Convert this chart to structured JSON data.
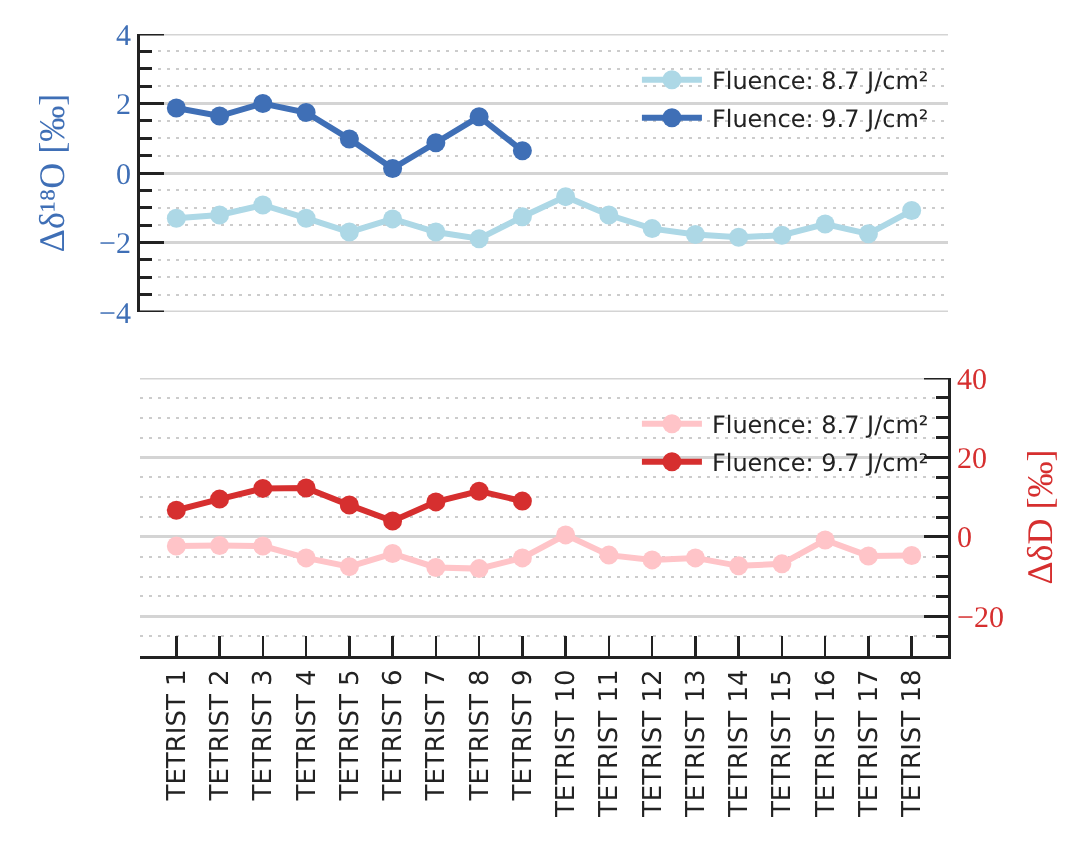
{
  "chart_data": [
    {
      "type": "line",
      "categories": [
        "TETRIST 1",
        "TETRIST 2",
        "TETRIST 3",
        "TETRIST 4",
        "TETRIST 5",
        "TETRIST 6",
        "TETRIST 7",
        "TETRIST 8",
        "TETRIST 9",
        "TETRIST 10",
        "TETRIST 11",
        "TETRIST 12",
        "TETRIST 13",
        "TETRIST 14",
        "TETRIST 15",
        "TETRIST 16",
        "TETRIST 17",
        "TETRIST 18"
      ],
      "ylabel": "Δδ¹⁸O [‰]",
      "ylim": [
        -4,
        4
      ],
      "yticks": [
        -4,
        {
          "value": -3.5,
          "label": null
        },
        {
          "value": -3,
          "label": null
        },
        {
          "value": -2.5,
          "label": null
        },
        -2,
        {
          "value": -1.5,
          "label": null
        },
        {
          "value": -1,
          "label": null
        },
        {
          "value": -0.5,
          "label": null
        },
        0,
        {
          "value": 0.5,
          "label": null
        },
        {
          "value": 1,
          "label": null
        },
        {
          "value": 1.5,
          "label": null
        },
        2,
        {
          "value": 2.5,
          "label": null
        },
        {
          "value": 3,
          "label": null
        },
        {
          "value": 3.5,
          "label": null
        },
        4
      ],
      "grid": "y",
      "legend": "top right",
      "marker": "circle",
      "tick_labels": "y",
      "series": [
        {
          "name": "Fluence: 8.7 J/cm²",
          "color": "#add8e6",
          "values": [
            -1.3,
            -1.21,
            -0.92,
            -1.3,
            -1.7,
            -1.32,
            -1.7,
            -1.89,
            -1.26,
            -0.68,
            -1.21,
            -1.6,
            -1.77,
            -1.85,
            -1.79,
            -1.47,
            -1.75,
            -1.08
          ]
        },
        {
          "name": "Fluence: 9.7 J/cm²",
          "color": "#3f6fb6",
          "values": [
            1.87,
            1.64,
            2.0,
            1.74,
            0.98,
            0.13,
            0.87,
            1.62,
            0.64,
            null,
            null,
            null,
            null,
            null,
            null,
            null,
            null,
            null
          ]
        }
      ]
    },
    {
      "type": "line",
      "categories": [
        "TETRIST 1",
        "TETRIST 2",
        "TETRIST 3",
        "TETRIST 4",
        "TETRIST 5",
        "TETRIST 6",
        "TETRIST 7",
        "TETRIST 8",
        "TETRIST 9",
        "TETRIST 10",
        "TETRIST 11",
        "TETRIST 12",
        "TETRIST 13",
        "TETRIST 14",
        "TETRIST 15",
        "TETRIST 16",
        "TETRIST 17",
        "TETRIST 18"
      ],
      "y2label": "ΔδD [‰]",
      "y2lim": [
        -30,
        40
      ],
      "y2ticks": [
        {
          "value": -25,
          "label": null
        },
        -20,
        {
          "value": -15,
          "label": null
        },
        {
          "value": -10,
          "label": null
        },
        {
          "value": -5,
          "label": null
        },
        0,
        {
          "value": 5,
          "label": null
        },
        {
          "value": 10,
          "label": null
        },
        {
          "value": 15,
          "label": null
        },
        20,
        {
          "value": 25,
          "label": null
        },
        {
          "value": 30,
          "label": null
        },
        {
          "value": 35,
          "label": null
        },
        40
      ],
      "grid": "y",
      "legend": "top right",
      "marker": "circle",
      "series": [
        {
          "name": "Fluence: 8.7 J/cm²",
          "color": "#ffc4c8",
          "axis": "y2",
          "values": [
            -2.3,
            -2.2,
            -2.3,
            -5.3,
            -7.5,
            -4.2,
            -7.7,
            -8.0,
            -5.3,
            0.5,
            -4.6,
            -5.8,
            -5.3,
            -7.3,
            -6.8,
            -0.8,
            -4.8,
            -4.7
          ]
        },
        {
          "name": "Fluence: 9.7 J/cm²",
          "color": "#d62f2f",
          "axis": "y2",
          "values": [
            6.7,
            9.5,
            12.2,
            12.3,
            8.0,
            4.0,
            8.8,
            11.5,
            9.0,
            null,
            null,
            null,
            null,
            null,
            null,
            null,
            null,
            null
          ]
        }
      ]
    }
  ]
}
